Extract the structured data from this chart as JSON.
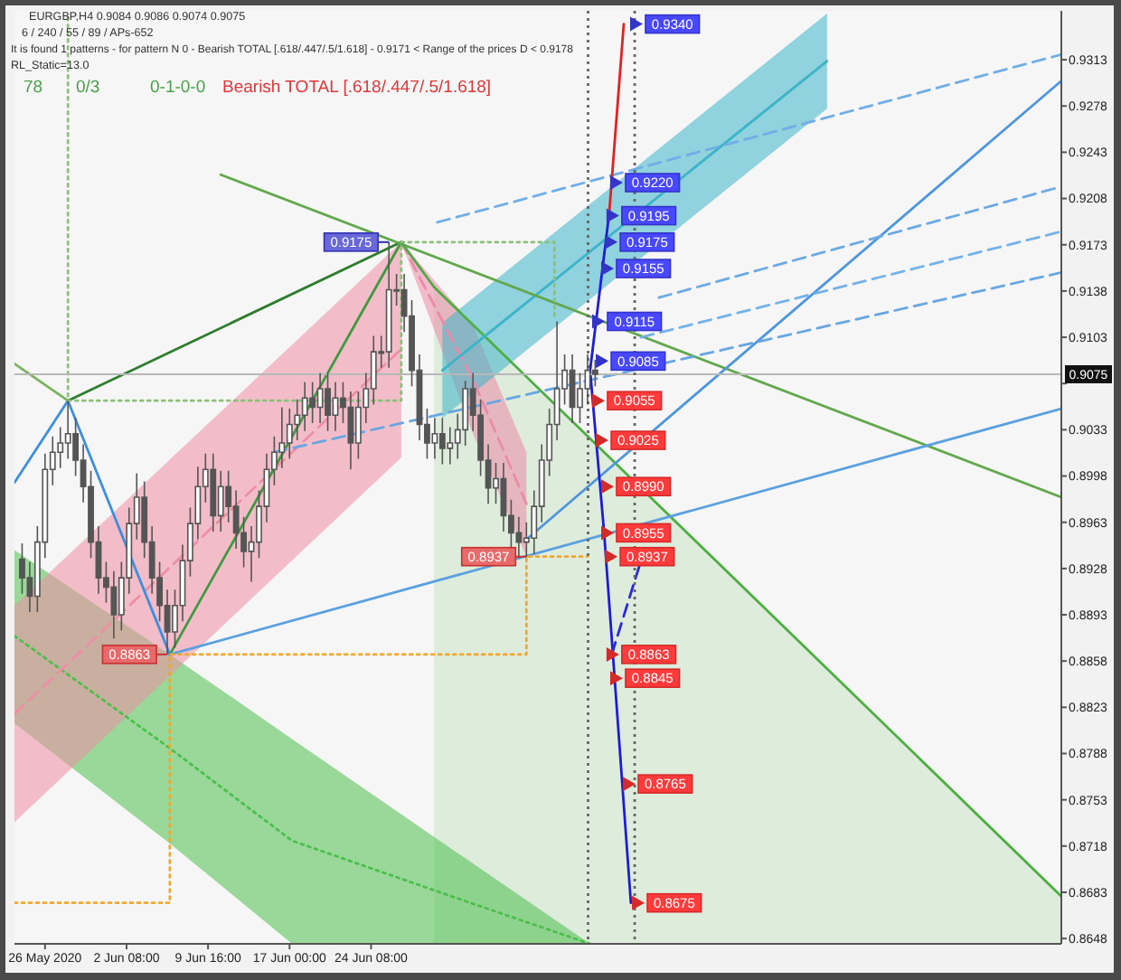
{
  "chart_data": {
    "type": "candlestick",
    "color": "#555555",
    "x": [
      "2020-05-23T22:30",
      "2020-05-24T15:00",
      "2020-05-25T07:30",
      "2020-05-26T00:00",
      "2020-05-26T16:30",
      "2020-05-27T09:00",
      "2020-05-28T01:30",
      "2020-05-28T18:00",
      "2020-05-29T10:30",
      "2020-05-30T03:00",
      "2020-05-30T19:30",
      "2020-05-31T12:00",
      "2020-06-01T04:30",
      "2020-06-01T21:00",
      "2020-06-02T13:30",
      "2020-06-03T06:00",
      "2020-06-03T22:30",
      "2020-06-04T15:00",
      "2020-06-05T07:30",
      "2020-06-06T00:00",
      "2020-06-06T16:30",
      "2020-06-07T09:00",
      "2020-06-08T01:30",
      "2020-06-08T18:00",
      "2020-06-09T10:30",
      "2020-06-10T03:00",
      "2020-06-10T19:30",
      "2020-06-11T12:00",
      "2020-06-12T04:30",
      "2020-06-12T21:00",
      "2020-06-13T13:30",
      "2020-06-14T06:00",
      "2020-06-14T22:30",
      "2020-06-15T15:00",
      "2020-06-16T07:30",
      "2020-06-17T00:00",
      "2020-06-17T16:30",
      "2020-06-18T09:00",
      "2020-06-19T01:30",
      "2020-06-19T18:00",
      "2020-06-20T10:30",
      "2020-06-21T03:00",
      "2020-06-21T19:30",
      "2020-06-22T12:00",
      "2020-06-23T04:30",
      "2020-06-23T21:00",
      "2020-06-24T13:30",
      "2020-06-25T06:00",
      "2020-06-25T22:30",
      "2020-06-26T15:00",
      "2020-06-27T07:30",
      "2020-06-28T00:00",
      "2020-06-28T16:30",
      "2020-06-29T09:00",
      "2020-06-30T01:30",
      "2020-06-30T18:00",
      "2020-07-01T10:30",
      "2020-07-02T03:00",
      "2020-07-02T19:30",
      "2020-07-03T12:00",
      "2020-07-04T04:30",
      "2020-07-04T21:00",
      "2020-07-05T13:30",
      "2020-07-06T06:00",
      "2020-07-06T22:30",
      "2020-07-07T15:00",
      "2020-07-08T07:30",
      "2020-07-09T00:00",
      "2020-07-09T16:30",
      "2020-07-10T09:00",
      "2020-07-11T01:30",
      "2020-07-11T18:00",
      "2020-07-12T10:30",
      "2020-07-13T03:00",
      "2020-07-13T19:30",
      "2020-07-14T12:00"
    ],
    "ohlc": [
      [
        0.8935,
        0.8947,
        0.8909,
        0.8921
      ],
      [
        0.8921,
        0.8933,
        0.8895,
        0.8907
      ],
      [
        0.8907,
        0.896,
        0.8895,
        0.8948
      ],
      [
        0.8948,
        0.9015,
        0.8936,
        0.9003
      ],
      [
        0.9003,
        0.9028,
        0.8991,
        0.9016
      ],
      [
        0.9016,
        0.9035,
        0.9004,
        0.9023
      ],
      [
        0.9023,
        0.9055,
        0.9011,
        0.903
      ],
      [
        0.903,
        0.9042,
        0.8998,
        0.901
      ],
      [
        0.901,
        0.9022,
        0.8978,
        0.899
      ],
      [
        0.899,
        0.9002,
        0.8936,
        0.8948
      ],
      [
        0.8948,
        0.896,
        0.8909,
        0.8921
      ],
      [
        0.8921,
        0.8933,
        0.8902,
        0.8914
      ],
      [
        0.8914,
        0.8926,
        0.8875,
        0.8893
      ],
      [
        0.8893,
        0.8933,
        0.8881,
        0.8921
      ],
      [
        0.8921,
        0.8974,
        0.8909,
        0.8962
      ],
      [
        0.8962,
        0.9,
        0.895,
        0.8982
      ],
      [
        0.8982,
        0.8994,
        0.8936,
        0.8948
      ],
      [
        0.8948,
        0.896,
        0.8909,
        0.8921
      ],
      [
        0.8921,
        0.8933,
        0.8888,
        0.89
      ],
      [
        0.89,
        0.8912,
        0.8863,
        0.888
      ],
      [
        0.888,
        0.8912,
        0.8868,
        0.89
      ],
      [
        0.89,
        0.8946,
        0.8888,
        0.8934
      ],
      [
        0.8934,
        0.8974,
        0.8922,
        0.8962
      ],
      [
        0.8962,
        0.9005,
        0.895,
        0.899
      ],
      [
        0.899,
        0.9015,
        0.8978,
        0.9003
      ],
      [
        0.9003,
        0.9015,
        0.8956,
        0.8968
      ],
      [
        0.8968,
        0.9002,
        0.8956,
        0.899
      ],
      [
        0.899,
        0.9002,
        0.8963,
        0.8975
      ],
      [
        0.8975,
        0.8987,
        0.8943,
        0.8955
      ],
      [
        0.8955,
        0.8967,
        0.8929,
        0.8941
      ],
      [
        0.8941,
        0.896,
        0.8918,
        0.8948
      ],
      [
        0.8948,
        0.8987,
        0.8936,
        0.8975
      ],
      [
        0.8975,
        0.9015,
        0.8963,
        0.9003
      ],
      [
        0.9003,
        0.9028,
        0.8991,
        0.9016
      ],
      [
        0.9016,
        0.905,
        0.9004,
        0.9023
      ],
      [
        0.9023,
        0.9049,
        0.9011,
        0.9037
      ],
      [
        0.9037,
        0.9056,
        0.9025,
        0.9044
      ],
      [
        0.9044,
        0.9069,
        0.9032,
        0.9057
      ],
      [
        0.9057,
        0.9069,
        0.9038,
        0.905
      ],
      [
        0.905,
        0.9076,
        0.9038,
        0.9064
      ],
      [
        0.9064,
        0.9076,
        0.9032,
        0.9044
      ],
      [
        0.9044,
        0.9069,
        0.9032,
        0.9057
      ],
      [
        0.9057,
        0.9069,
        0.9038,
        0.905
      ],
      [
        0.905,
        0.9062,
        0.9003,
        0.9023
      ],
      [
        0.9023,
        0.9062,
        0.9011,
        0.905
      ],
      [
        0.905,
        0.9076,
        0.9038,
        0.9064
      ],
      [
        0.9064,
        0.9104,
        0.9052,
        0.9092
      ],
      [
        0.9092,
        0.9104,
        0.908,
        0.9092
      ],
      [
        0.9092,
        0.9175,
        0.908,
        0.9139
      ],
      [
        0.9139,
        0.9151,
        0.9127,
        0.9139
      ],
      [
        0.9139,
        0.9151,
        0.9107,
        0.9119
      ],
      [
        0.9119,
        0.9131,
        0.9066,
        0.9078
      ],
      [
        0.9078,
        0.909,
        0.9025,
        0.9037
      ],
      [
        0.9037,
        0.9049,
        0.9011,
        0.9023
      ],
      [
        0.9023,
        0.9042,
        0.9011,
        0.903
      ],
      [
        0.903,
        0.9042,
        0.9007,
        0.9019
      ],
      [
        0.9019,
        0.9035,
        0.9007,
        0.9023
      ],
      [
        0.9023,
        0.9045,
        0.9011,
        0.9033
      ],
      [
        0.9033,
        0.907,
        0.9021,
        0.9064
      ],
      [
        0.9064,
        0.9076,
        0.9032,
        0.9044
      ],
      [
        0.9044,
        0.9056,
        0.8998,
        0.901
      ],
      [
        0.901,
        0.9022,
        0.8977,
        0.8989
      ],
      [
        0.8989,
        0.9008,
        0.8977,
        0.8996
      ],
      [
        0.8996,
        0.9008,
        0.8956,
        0.8968
      ],
      [
        0.8968,
        0.898,
        0.8943,
        0.8955
      ],
      [
        0.8955,
        0.8967,
        0.8936,
        0.8948
      ],
      [
        0.8948,
        0.8963,
        0.8937,
        0.8951
      ],
      [
        0.8951,
        0.8987,
        0.8939,
        0.8975
      ],
      [
        0.8975,
        0.9022,
        0.8963,
        0.901
      ],
      [
        0.901,
        0.9049,
        0.8998,
        0.9037
      ],
      [
        0.9037,
        0.9115,
        0.9025,
        0.9064
      ],
      [
        0.9064,
        0.909,
        0.9052,
        0.9078
      ],
      [
        0.9078,
        0.909,
        0.9038,
        0.905
      ],
      [
        0.905,
        0.9076,
        0.9038,
        0.9064
      ],
      [
        0.9064,
        0.909,
        0.9052,
        0.9078
      ],
      [
        0.9078,
        0.9086,
        0.9066,
        0.9075
      ]
    ],
    "xlim": [
      "2020-05-23T06:00",
      "2020-08-25T10:30"
    ],
    "xticks": [
      {
        "value": "2020-05-26T00:00",
        "label": "26 May 2020"
      },
      {
        "value": "2020-06-02T08:00",
        "label": "2 Jun 08:00"
      },
      {
        "value": "2020-06-09T16:00",
        "label": "9 Jun 16:00"
      },
      {
        "value": "2020-06-17T00:00",
        "label": "17 Jun 00:00"
      },
      {
        "value": "2020-06-24T08:00",
        "label": "24 Jun 08:00"
      }
    ],
    "ylim": [
      0.8644,
      0.935
    ],
    "yticks": [
      0.8648,
      0.8683,
      0.8718,
      0.8753,
      0.8788,
      0.8823,
      0.8858,
      0.8893,
      0.8928,
      0.8963,
      0.8998,
      0.9033,
      {
        "value": 0.9068,
        "label": null
      },
      0.9103,
      0.9138,
      0.9173,
      0.9208,
      0.9243,
      0.9278,
      0.9313
    ],
    "series": [
      {
        "type": "area",
        "color": "#4caf40",
        "x": [
          "2020-06-30T00:00",
          "2020-08-25T10:30"
        ],
        "values": [
          0.9141,
          0.868
        ]
      },
      {
        "type": "line",
        "line_style": "dotted",
        "color": "#4cbf4c",
        "x": [
          "2020-05-23T06:00",
          "2020-06-06T05:30",
          "2020-06-17T05:30",
          "2020-07-01T21:30",
          "2020-07-14T01:00"
        ],
        "values": [
          0.8877,
          0.8792,
          0.8722,
          0.8679,
          0.8644
        ],
        "lower": [
          0.8811,
          0.872,
          0.8644,
          0.8644,
          0.8644
        ],
        "upper": [
          0.8942,
          0.8863,
          0.8799,
          0.8714,
          0.8644
        ]
      },
      {
        "type": "line",
        "line_style": "dashed",
        "color": "#ee8ea4",
        "x": [
          "2020-05-23T06:00",
          "2020-06-27T01:15"
        ],
        "values": [
          0.8818,
          0.9094
        ],
        "lower": [
          0.8736,
          0.9012
        ],
        "upper": [
          0.89,
          0.9175
        ]
      },
      {
        "type": "line",
        "line_style": "dashed",
        "color": "#ec8aa8",
        "x": [
          "2020-06-27T01:15",
          "2020-07-03T12:00",
          "2020-07-08T07:30"
        ],
        "values": [
          0.9175,
          0.9071,
          0.8977
        ],
        "lower": [
          0.9175,
          0.903,
          0.8937
        ],
        "upper": [
          0.9175,
          0.9112,
          0.9016
        ]
      },
      {
        "type": "line",
        "color": "#3cb4c8",
        "x": [
          "2020-06-30T18:00",
          "2020-08-04T08:30"
        ],
        "values": [
          0.9078,
          0.9312
        ],
        "lower": [
          0.9042,
          0.9276
        ],
        "upper": [
          0.9114,
          0.9348
        ]
      },
      {
        "type": "line",
        "color": "#3d8fdc",
        "x": [
          "2020-05-23T06:00",
          "2020-05-28T01:30",
          "2020-06-06T05:30"
        ],
        "values": [
          0.8993,
          0.9055,
          0.8863
        ]
      },
      {
        "type": "line",
        "color": "#7ab35e",
        "x": [
          "2020-05-23T06:00",
          "2020-05-28T01:30"
        ],
        "values": [
          0.9083,
          0.9055
        ]
      },
      {
        "type": "line",
        "color": "#2d7d2d",
        "x": [
          "2020-05-28T01:30",
          "2020-06-27T01:15"
        ],
        "values": [
          0.9055,
          0.9175
        ]
      },
      {
        "type": "line",
        "color": "#3f9a3f",
        "x": [
          "2020-06-06T05:30",
          "2020-06-27T01:15"
        ],
        "values": [
          0.8863,
          0.9175
        ]
      },
      {
        "type": "line",
        "color": "#62a84c",
        "x": [
          "2020-06-10T19:30",
          "2020-08-25T10:30"
        ],
        "values": [
          0.9226,
          0.8982
        ]
      },
      {
        "type": "line",
        "color": "#52a846",
        "x": [
          "2020-06-27T01:15",
          "2020-06-30T00:00"
        ],
        "values": [
          0.9175,
          0.9141
        ]
      },
      {
        "type": "line",
        "color": "#5aa0e0",
        "x": [
          "2020-06-06T05:30",
          "2020-08-25T10:30"
        ],
        "values": [
          0.8863,
          0.9049
        ]
      },
      {
        "type": "line",
        "color": "#4f96dc",
        "x": [
          "2020-07-08T07:30",
          "2020-08-25T10:30"
        ],
        "values": [
          0.895,
          0.9297
        ]
      },
      {
        "type": "line",
        "line_style": "dashed",
        "color": "#70aee6",
        "x": [
          "2020-06-30T07:00",
          "2020-08-25T10:30"
        ],
        "values": [
          0.919,
          0.9317
        ]
      },
      {
        "type": "line",
        "line_style": "dashed",
        "color": "#6caae4",
        "x": [
          "2020-07-20T05:30",
          "2020-08-25T10:30"
        ],
        "values": [
          0.9133,
          0.9217
        ]
      },
      {
        "type": "line",
        "line_style": "dashed",
        "color": "#74b2e8",
        "x": [
          "2020-07-18T15:00",
          "2020-08-25T10:30"
        ],
        "values": [
          0.9103,
          0.9183
        ]
      },
      {
        "type": "line",
        "line_style": "dashed",
        "color": "#68a6e2",
        "x": [
          "2020-06-15T15:00",
          "2020-08-25T10:30"
        ],
        "values": [
          0.9016,
          0.9152
        ]
      },
      {
        "type": "line",
        "line_style": "dotted",
        "color": "#f0a830",
        "x": [
          "2020-05-23T06:00",
          "2020-06-06T05:30",
          "2020-06-06T05:30",
          "2020-07-08T07:30",
          "2020-07-08T07:30",
          "2020-07-13T19:30"
        ],
        "values": [
          0.8675,
          0.8675,
          0.8863,
          0.8863,
          0.8937,
          0.8937
        ]
      },
      {
        "type": "line",
        "line_style": "dotted",
        "color": "#8cc07a",
        "x": [
          "2020-05-28T01:30",
          "2020-05-28T01:30",
          "2020-06-27T01:15",
          "2020-06-27T01:15",
          "2020-07-10T20:00",
          "2020-07-10T20:00"
        ],
        "values": [
          0.9345,
          0.9055,
          0.9055,
          0.9175,
          0.9175,
          0.9119
        ]
      },
      {
        "type": "line",
        "color": "#1c1cd8",
        "x": [
          "2020-07-15T18:15",
          "2020-07-14T01:00",
          "2020-07-15T07:15",
          "2020-07-17T17:00"
        ],
        "values": [
          0.9197,
          0.9078,
          0.8955,
          0.8675
        ]
      },
      {
        "type": "line",
        "line_style": "dashed",
        "color": "#2a2ae0",
        "x": [
          "2020-07-15T23:45",
          "2020-07-18T12:15"
        ],
        "values": [
          0.8863,
          0.8931
        ]
      },
      {
        "type": "line",
        "color": "#e42020",
        "x": [
          "2020-07-15T18:15",
          "2020-07-17T01:40"
        ],
        "values": [
          0.9197,
          0.934
        ]
      },
      {
        "type": "scatter",
        "marker": "triangle",
        "color": "#3434c8",
        "x": [
          "2020-07-18T05:00",
          "2020-07-16T10:00",
          "2020-07-16T02:00",
          "2020-07-15T22:30",
          "2020-07-15T14:30",
          "2020-07-14T19:00",
          "2020-07-15T03:00"
        ],
        "values": [
          0.934,
          0.922,
          0.9195,
          0.9175,
          0.9155,
          0.9115,
          0.9085
        ],
        "value_labels": [
          "0.9340",
          "0.9220",
          "0.9195",
          "0.9175",
          "0.9155",
          "0.9115",
          "0.9085"
        ]
      },
      {
        "type": "scatter",
        "marker": "triangle",
        "color": "#d42a2a",
        "x": [
          "2020-07-14T19:00",
          "2020-07-15T03:00",
          "2020-07-15T14:30",
          "2020-07-15T14:30",
          "2020-07-15T22:30",
          "2020-07-16T02:00",
          "2020-07-16T10:00",
          "2020-07-17T13:30",
          "2020-07-18T09:00"
        ],
        "values": [
          0.9055,
          0.9025,
          0.899,
          0.8955,
          0.8937,
          0.8863,
          0.8845,
          0.8765,
          0.8675
        ],
        "value_labels": [
          "0.9055",
          "0.9025",
          "0.8990",
          "0.8955",
          "0.8937",
          "0.8863",
          "0.8845",
          "0.8765",
          "0.8675"
        ]
      }
    ],
    "ref_lines": [
      {
        "axis": "y",
        "value": 0.9075,
        "label": "0.9075",
        "color": "#b8b8b8"
      },
      {
        "axis": "x",
        "value": "2020-07-13T20:36",
        "color": "#666666",
        "line_style": "dotted"
      },
      {
        "axis": "x",
        "value": "2020-07-18T01:15",
        "color": "#666666",
        "line_style": "dotted"
      }
    ],
    "annotations": [
      "EURGBP,H4  0.9084 0.9086 0.9074 0.9075",
      "6 / 240 / 55 / 89 / APs-652",
      "It is found 1 patterns  -  for pattern N 0 - Bearish TOTAL [.618/.447/.5/1.618] - 0.9171 < Range of the prices D < 0.9178",
      "RL_Static=13.0",
      "78",
      "0/3",
      "0-1-0-0",
      "Bearish TOTAL [.618/.447/.5/1.618]",
      {
        "text": "0.9175",
        "x": "2020-06-25T22:30",
        "y": 0.9175
      },
      {
        "text": "0.8863",
        "x": "2020-06-06T00:00",
        "y": 0.8863
      },
      {
        "text": "0.8937",
        "x": "2020-07-08T07:30",
        "y": 0.8937
      }
    ]
  }
}
